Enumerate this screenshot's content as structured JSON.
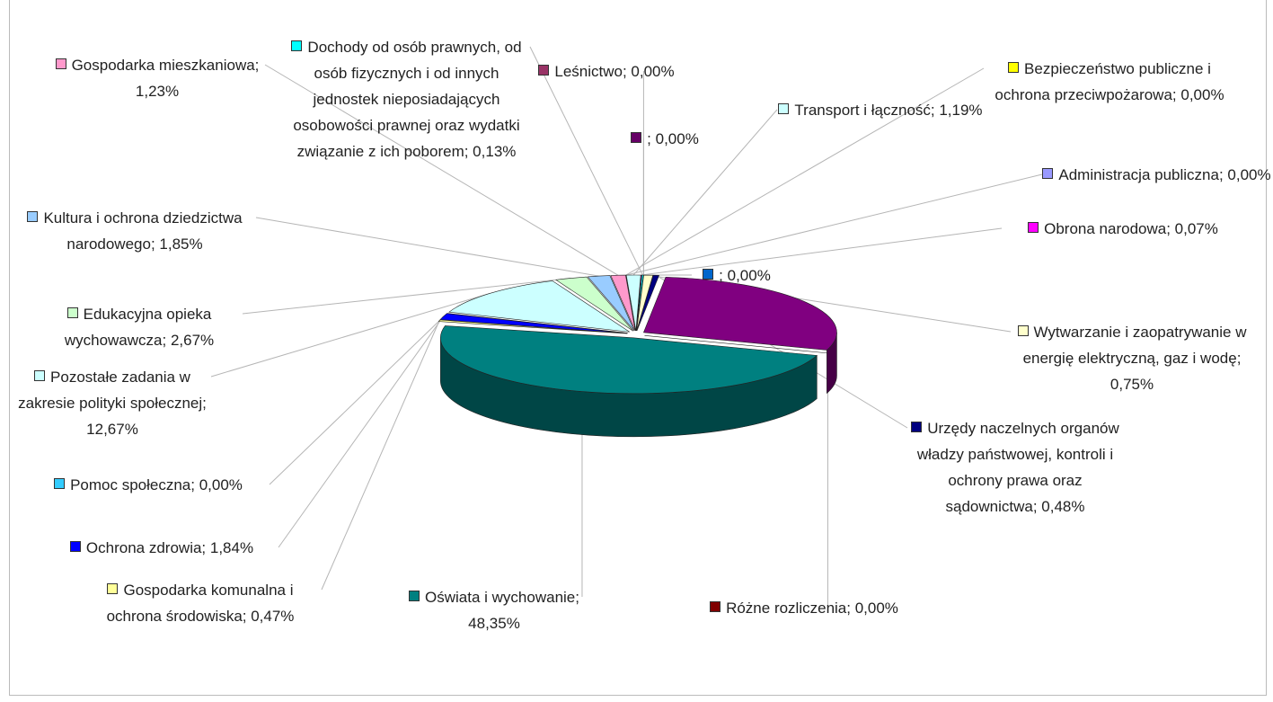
{
  "chart_data": {
    "type": "pie",
    "categories": [
      "Administracja publiczna; 0,00%",
      "Bezpieczeństwo publiczne i ochrona przeciwpożarowa; 0,00%",
      "Transport i łączność; 1,19%",
      "Obrona narodowa; 0,07%",
      "; 0,00%",
      "Dochody od osób prawnych,  od osób fizycznych i od innych jednostek nieposiadających osobowości prawnej oraz wydatki związanie z ich poborem; 0,13%",
      "Leśnictwo; 0,00%",
      "; 0,00%",
      "Wytwarzanie i zaopatrywanie w energię elektryczną, gaz i wodę; 0,75%",
      "Urzędy naczelnych organów władzy państwowej, kontroli i ochrony prawa oraz sądownictwa; 0,48%",
      null,
      "Różne rozliczenia; 0,00%",
      "Oświata i wychowanie; 48,35%",
      "Gospodarka komunalna i ochrona środowiska; 0,47%",
      "Ochrona zdrowia; 1,84%",
      "Pomoc społeczna; 0,00%",
      "Pozostałe zadania w zakresie polityki społecznej; 12,67%",
      "Edukacyjna opieka wychowawcza; 2,67%",
      "Kultura i ochrona dziedzictwa narodowego; 1,85%",
      "Gospodarka mieszkaniowa; 1,23%"
    ],
    "values": [
      0,
      0,
      1.19,
      0.07,
      0,
      0.13,
      0,
      0,
      0.75,
      0.48,
      28.3,
      0,
      48.35,
      0.47,
      1.84,
      0,
      12.67,
      2.67,
      1.85,
      1.23
    ],
    "colors": [
      "#9999ff",
      "#ffff00",
      "#ccffff",
      "#ff00ff",
      "#0066cc",
      "#00ffff",
      "#993366",
      "#660066",
      "#ffffcc",
      "#000080",
      "#800080",
      "#800000",
      "#008080",
      "#ffff99",
      "#0000ff",
      "#33ccff",
      "#ccffff",
      "#ccffcc",
      "#99ccff",
      "#ff99cc"
    ]
  }
}
